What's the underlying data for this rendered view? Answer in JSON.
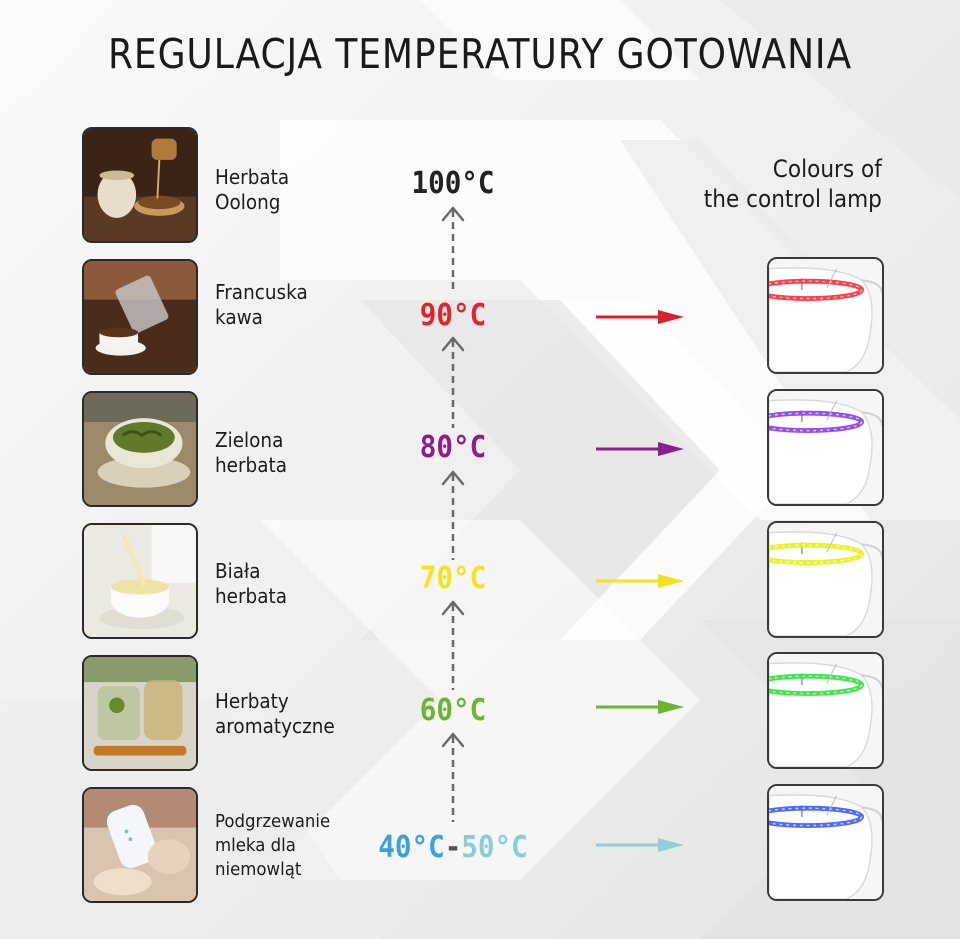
{
  "title": "REGULACJA TEMPERATURY GOTOWANIA",
  "lamp_heading": {
    "line1": "Colours of",
    "line2": "the control lamp"
  },
  "rows": [
    {
      "label1": "Herbata",
      "label2": "Oolong",
      "label3": "",
      "temp": "100°C",
      "temp2": "",
      "color": "#222222",
      "color2": "",
      "lamp": false
    },
    {
      "label1": "Francuska",
      "label2": "kawa",
      "label3": "",
      "temp": "90°C",
      "temp2": "",
      "color": "#e2232e",
      "color2": "",
      "lamp": true
    },
    {
      "label1": "Zielona",
      "label2": "herbata",
      "label3": "",
      "temp": "80°C",
      "temp2": "",
      "color": "#8e1f8a",
      "color2": "",
      "lamp": true
    },
    {
      "label1": "Biała",
      "label2": "herbata",
      "label3": "",
      "temp": "70°C",
      "temp2": "",
      "color": "#f2e51a",
      "color2": "",
      "lamp": true
    },
    {
      "label1": "Herbaty",
      "label2": "aromatyczne",
      "label3": "",
      "temp": "60°C",
      "temp2": "",
      "color": "#6cb52f",
      "color2": "",
      "lamp": true
    },
    {
      "label1": "Podgrzewanie",
      "label2": "mleka dla",
      "label3": "niemowląt",
      "temp": "40°C",
      "temp2": "50°C",
      "color": "#3aa3dd",
      "color2": "#86cfd8",
      "lamp": true
    }
  ],
  "temp_separator": "-",
  "lamp_colors": [
    "#ff2b3a",
    "#8a3cf0",
    "#e6f20f",
    "#2fe23a",
    "#3a5cff"
  ],
  "arrow_colors": [
    "#d9212e",
    "#8c1f8c",
    "#f0e41a",
    "#6bb52f",
    "#8fd0d8"
  ],
  "icons": [
    "arrow-up-icon",
    "arrow-right-icon",
    "kettle-icon"
  ]
}
